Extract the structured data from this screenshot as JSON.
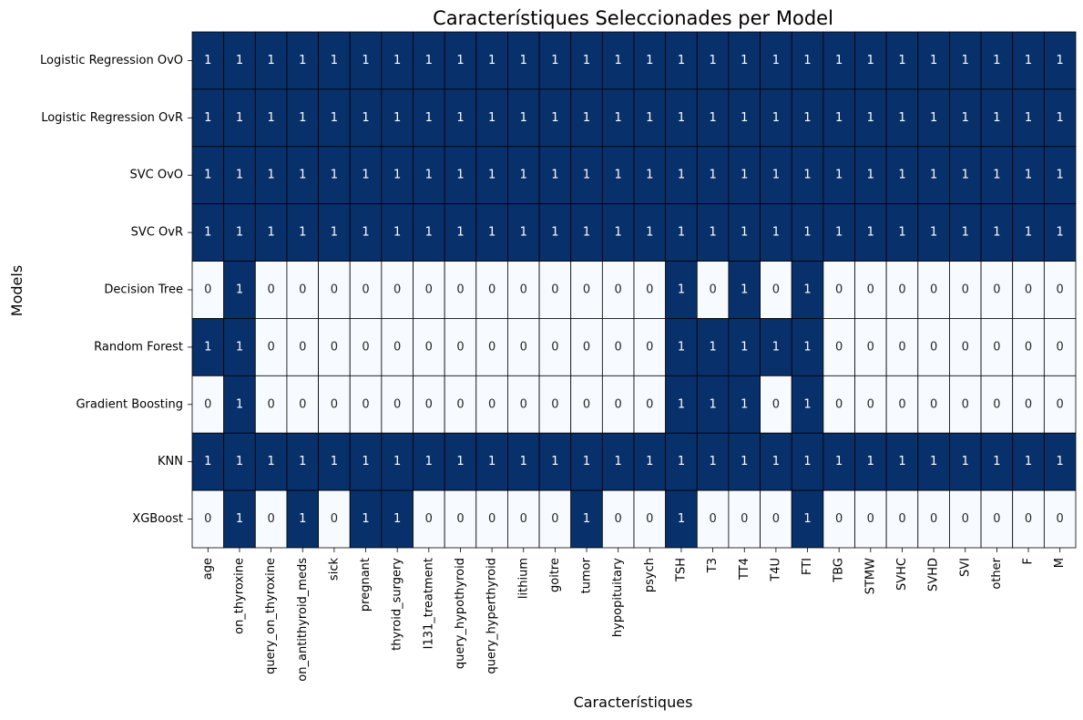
{
  "chart_data": {
    "type": "heatmap",
    "title": "Característiques Seleccionades per Model",
    "xlabel": "Característiques",
    "ylabel": "Models",
    "colors": {
      "high": "#08306b",
      "low": "#f7fbff",
      "grid": "#000000",
      "text_on_high": "#ffffff",
      "text_on_low": "#262626"
    },
    "colorbar": false,
    "x": [
      "age",
      "on_thyroxine",
      "query_on_thyroxine",
      "on_antithyroid_meds",
      "sick",
      "pregnant",
      "thyroid_surgery",
      "I131_treatment",
      "query_hypothyroid",
      "query_hyperthyroid",
      "lithium",
      "goitre",
      "tumor",
      "hypopituitary",
      "psych",
      "TSH",
      "T3",
      "TT4",
      "T4U",
      "FTI",
      "TBG",
      "STMW",
      "SVHC",
      "SVHD",
      "SVI",
      "other",
      "F",
      "M"
    ],
    "y": [
      "Logistic Regression OvO",
      "Logistic Regression OvR",
      "SVC OvO",
      "SVC OvR",
      "Decision Tree",
      "Random Forest",
      "Gradient Boosting",
      "KNN",
      "XGBoost"
    ],
    "values": [
      [
        1,
        1,
        1,
        1,
        1,
        1,
        1,
        1,
        1,
        1,
        1,
        1,
        1,
        1,
        1,
        1,
        1,
        1,
        1,
        1,
        1,
        1,
        1,
        1,
        1,
        1,
        1,
        1
      ],
      [
        1,
        1,
        1,
        1,
        1,
        1,
        1,
        1,
        1,
        1,
        1,
        1,
        1,
        1,
        1,
        1,
        1,
        1,
        1,
        1,
        1,
        1,
        1,
        1,
        1,
        1,
        1,
        1
      ],
      [
        1,
        1,
        1,
        1,
        1,
        1,
        1,
        1,
        1,
        1,
        1,
        1,
        1,
        1,
        1,
        1,
        1,
        1,
        1,
        1,
        1,
        1,
        1,
        1,
        1,
        1,
        1,
        1
      ],
      [
        1,
        1,
        1,
        1,
        1,
        1,
        1,
        1,
        1,
        1,
        1,
        1,
        1,
        1,
        1,
        1,
        1,
        1,
        1,
        1,
        1,
        1,
        1,
        1,
        1,
        1,
        1,
        1
      ],
      [
        0,
        1,
        0,
        0,
        0,
        0,
        0,
        0,
        0,
        0,
        0,
        0,
        0,
        0,
        0,
        1,
        0,
        1,
        0,
        1,
        0,
        0,
        0,
        0,
        0,
        0,
        0,
        0
      ],
      [
        1,
        1,
        0,
        0,
        0,
        0,
        0,
        0,
        0,
        0,
        0,
        0,
        0,
        0,
        0,
        1,
        1,
        1,
        1,
        1,
        0,
        0,
        0,
        0,
        0,
        0,
        0,
        0
      ],
      [
        0,
        1,
        0,
        0,
        0,
        0,
        0,
        0,
        0,
        0,
        0,
        0,
        0,
        0,
        0,
        1,
        1,
        1,
        0,
        1,
        0,
        0,
        0,
        0,
        0,
        0,
        0,
        0
      ],
      [
        1,
        1,
        1,
        1,
        1,
        1,
        1,
        1,
        1,
        1,
        1,
        1,
        1,
        1,
        1,
        1,
        1,
        1,
        1,
        1,
        1,
        1,
        1,
        1,
        1,
        1,
        1,
        1
      ],
      [
        0,
        1,
        0,
        1,
        0,
        1,
        1,
        0,
        0,
        0,
        0,
        0,
        1,
        0,
        0,
        1,
        0,
        0,
        0,
        1,
        0,
        0,
        0,
        0,
        0,
        0,
        0,
        0
      ]
    ]
  }
}
